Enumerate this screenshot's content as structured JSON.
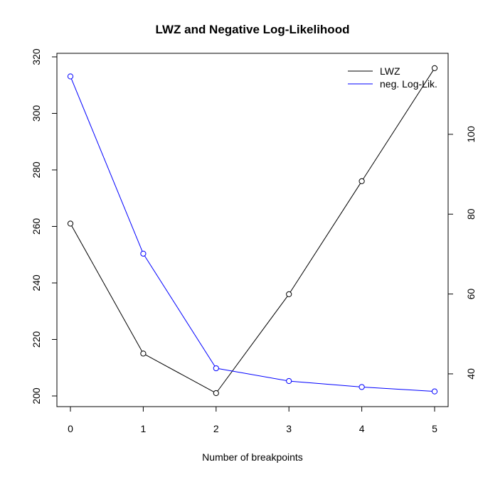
{
  "chart_data": {
    "type": "line",
    "title": "LWZ and Negative Log-Likelihood",
    "xlabel": "Number of breakpoints",
    "ylabel": "",
    "y2label": "",
    "x": [
      0,
      1,
      2,
      3,
      4,
      5
    ],
    "x_ticks": [
      0,
      1,
      2,
      3,
      4,
      5
    ],
    "xlim": [
      0,
      5
    ],
    "ylim": [
      200,
      320
    ],
    "y_ticks": [
      200,
      220,
      240,
      260,
      280,
      300,
      320
    ],
    "y2lim": [
      35,
      114.5
    ],
    "y2_ticks": [
      40,
      60,
      80,
      100
    ],
    "grid": false,
    "legend_position": "top-right",
    "series": [
      {
        "name": "LWZ",
        "axis": "left",
        "color": "#000000",
        "values": [
          261,
          215,
          201,
          236,
          276,
          316
        ]
      },
      {
        "name": "neg. Log-Lik.",
        "axis": "right",
        "color": "#0000ff",
        "values": [
          114.5,
          70.1,
          41.4,
          38.2,
          36.7,
          35.6
        ]
      }
    ]
  }
}
